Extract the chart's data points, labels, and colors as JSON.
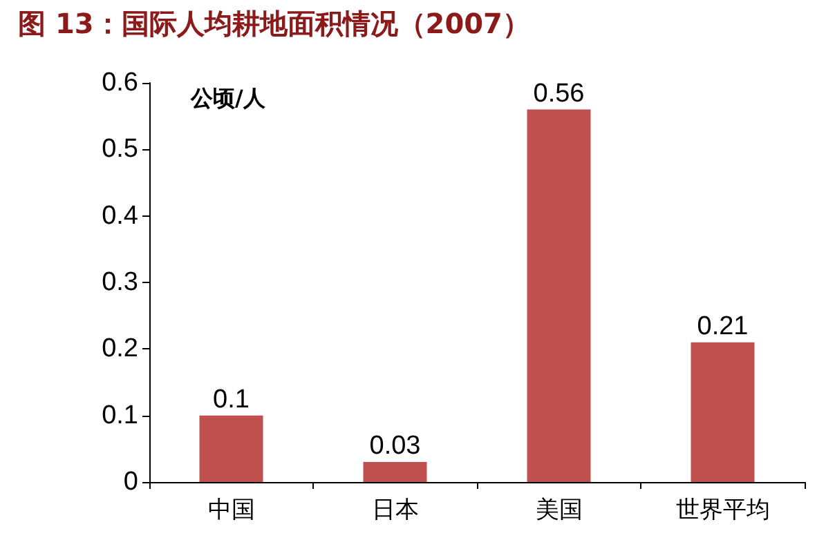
{
  "chart_data": {
    "type": "bar",
    "title": "图 13：国际人均耕地面积情况（2007）",
    "ylabel": "公顷/人",
    "categories": [
      "中国",
      "日本",
      "美国",
      "世界平均"
    ],
    "series": [
      {
        "color": "#c0504d",
        "values": [
          0.1,
          0.03,
          0.56,
          0.21
        ]
      }
    ],
    "ylim": [
      0,
      0.6
    ],
    "yticks": [
      0,
      0.1,
      0.2,
      0.3,
      0.4,
      0.5,
      0.6
    ],
    "grid": false,
    "data_labels": true
  }
}
